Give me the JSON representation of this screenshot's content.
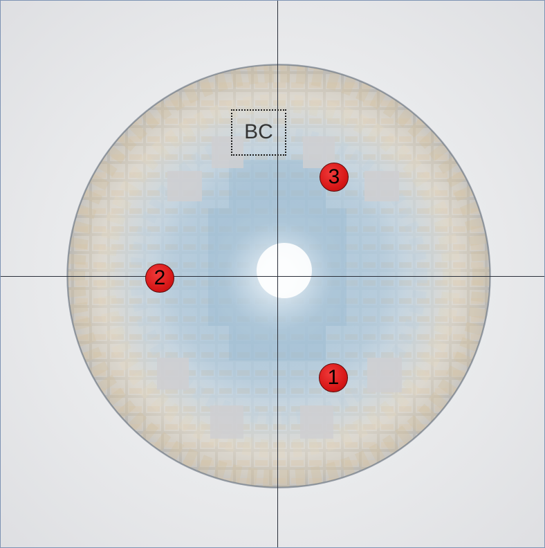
{
  "image": {
    "subject": "lens",
    "colors": {
      "background": "#e9eaec",
      "lens_base": "#dfe3e8",
      "lens_blue": "#8fb3cc",
      "lens_tan": "#d8c6a8",
      "marker_fill": "#d81818",
      "crosshair": "#2a2f3a"
    }
  },
  "labels": {
    "bc": "BC",
    "markers": [
      "1",
      "2",
      "3"
    ]
  }
}
